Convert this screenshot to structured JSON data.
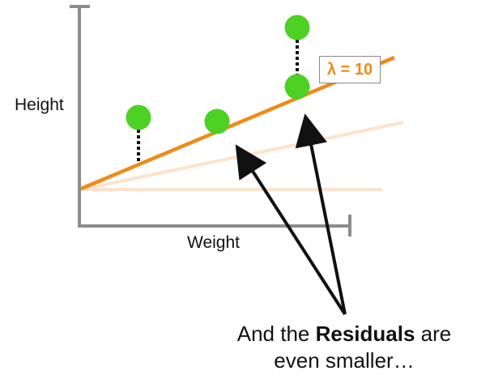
{
  "axes": {
    "y_label": "Height",
    "x_label": "Weight"
  },
  "lambda_label": "λ = 10",
  "caption": {
    "prefix": "And the",
    "bold_word": "Residuals",
    "suffix": "are",
    "line2": "even smaller…"
  },
  "colors": {
    "axis": "#8c8c8c",
    "fit_line": "#f08a18",
    "faded_line": "#fde3cc",
    "point": "#4cd124",
    "residual": "#111111",
    "arrow": "#111111",
    "text": "#111111",
    "lambda_text": "#f08a18"
  }
}
